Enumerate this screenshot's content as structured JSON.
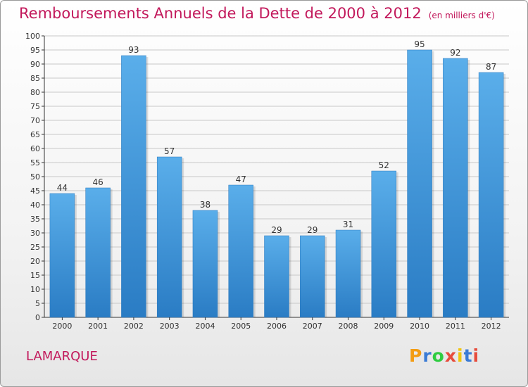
{
  "chart_data": {
    "type": "bar",
    "title": "Remboursements Annuels de la Dette de 2000 à 2012",
    "subtitle": "(en milliers d'€)",
    "categories": [
      "2000",
      "2001",
      "2002",
      "2003",
      "2004",
      "2005",
      "2006",
      "2007",
      "2008",
      "2009",
      "2010",
      "2011",
      "2012"
    ],
    "values": [
      44,
      46,
      93,
      57,
      38,
      47,
      29,
      29,
      31,
      52,
      95,
      92,
      87
    ],
    "ylim": [
      0,
      100
    ],
    "ytick_step": 5,
    "grid": "horizontal",
    "bar_color": "#3d95dc"
  },
  "footer": {
    "commune": "LAMARQUE",
    "logo": {
      "letters": [
        "P",
        "r",
        "o",
        "x",
        "i",
        "t",
        "i"
      ],
      "colors": [
        "#f39c12",
        "#3a7bd5",
        "#2ecc40",
        "#e74c3c",
        "#f1c40f",
        "#3a7bd5",
        "#e74c3c"
      ]
    }
  },
  "colors": {
    "title": "#c2185b",
    "grid": "#c8c8c8",
    "axis": "#333333"
  }
}
